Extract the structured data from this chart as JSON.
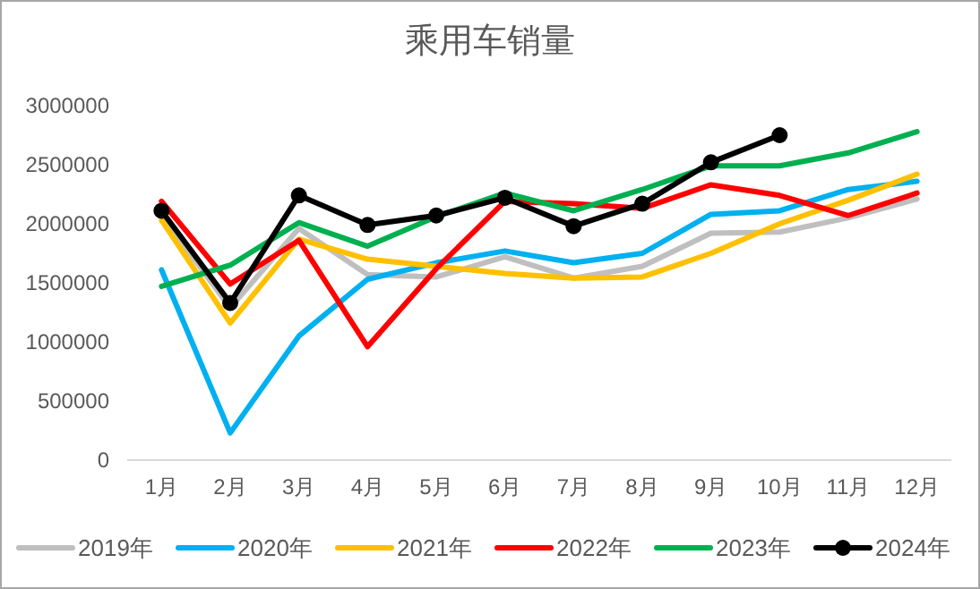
{
  "chart_data": {
    "type": "line",
    "title": "乘用车销量",
    "categories": [
      "1月",
      "2月",
      "3月",
      "4月",
      "5月",
      "6月",
      "7月",
      "8月",
      "9月",
      "10月",
      "11月",
      "12月"
    ],
    "ylim": [
      0,
      3000000
    ],
    "yticks": [
      0,
      500000,
      1000000,
      1500000,
      2000000,
      2500000,
      3000000
    ],
    "grid": false,
    "legend": "bottom",
    "series": [
      {
        "name": "2019年",
        "color": "#bfbfbf",
        "marker": "none",
        "values": [
          2070000,
          1290000,
          1960000,
          1570000,
          1550000,
          1720000,
          1540000,
          1640000,
          1920000,
          1930000,
          2050000,
          2210000
        ]
      },
      {
        "name": "2020年",
        "color": "#00b0f0",
        "marker": "none",
        "values": [
          1610000,
          230000,
          1050000,
          1530000,
          1670000,
          1770000,
          1670000,
          1750000,
          2080000,
          2110000,
          2290000,
          2360000
        ]
      },
      {
        "name": "2021年",
        "color": "#ffc000",
        "marker": "none",
        "values": [
          2030000,
          1160000,
          1870000,
          1700000,
          1640000,
          1580000,
          1540000,
          1550000,
          1750000,
          2000000,
          2200000,
          2420000
        ]
      },
      {
        "name": "2022年",
        "color": "#ff0000",
        "marker": "none",
        "values": [
          2190000,
          1490000,
          1860000,
          960000,
          1620000,
          2190000,
          2170000,
          2130000,
          2330000,
          2240000,
          2070000,
          2260000
        ]
      },
      {
        "name": "2023年",
        "color": "#00b050",
        "marker": "none",
        "values": [
          1470000,
          1650000,
          2010000,
          1810000,
          2060000,
          2260000,
          2110000,
          2290000,
          2490000,
          2490000,
          2600000,
          2780000
        ]
      },
      {
        "name": "2024年",
        "color": "#000000",
        "marker": "circle",
        "values": [
          2110000,
          1330000,
          2240000,
          1990000,
          2070000,
          2220000,
          1980000,
          2170000,
          2520000,
          2750000,
          null,
          null
        ]
      }
    ]
  }
}
